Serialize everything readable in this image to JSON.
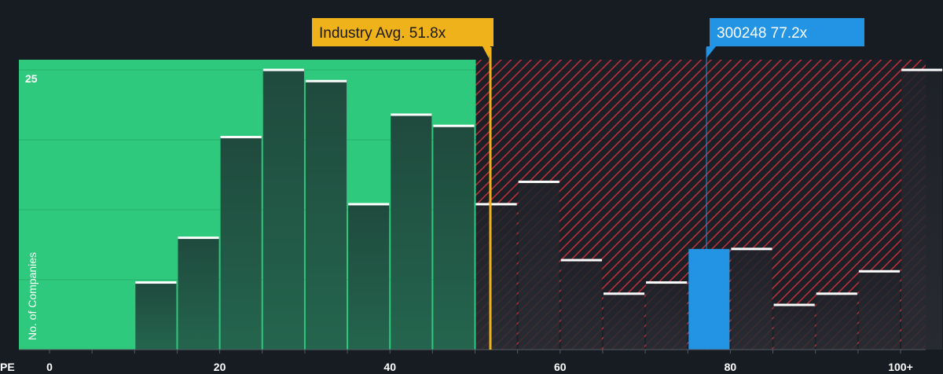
{
  "chart_data": {
    "type": "bar",
    "xlabel": "PE",
    "ylabel": "No. of Companies",
    "x_ticks": [
      "0",
      "20",
      "40",
      "60",
      "80",
      "100+"
    ],
    "y_ticks": [
      "25"
    ],
    "bin_width": 5,
    "bins": [
      {
        "start": 10,
        "end": 15,
        "value": 6
      },
      {
        "start": 15,
        "end": 20,
        "value": 10
      },
      {
        "start": 20,
        "end": 25,
        "value": 19
      },
      {
        "start": 25,
        "end": 30,
        "value": 25
      },
      {
        "start": 30,
        "end": 35,
        "value": 24
      },
      {
        "start": 35,
        "end": 40,
        "value": 13
      },
      {
        "start": 40,
        "end": 45,
        "value": 21
      },
      {
        "start": 45,
        "end": 50,
        "value": 20
      },
      {
        "start": 50,
        "end": 55,
        "value": 13
      },
      {
        "start": 55,
        "end": 60,
        "value": 15
      },
      {
        "start": 60,
        "end": 65,
        "value": 8
      },
      {
        "start": 65,
        "end": 70,
        "value": 5
      },
      {
        "start": 70,
        "end": 75,
        "value": 6
      },
      {
        "start": 75,
        "end": 80,
        "value": 9,
        "highlight": true
      },
      {
        "start": 80,
        "end": 85,
        "value": 9
      },
      {
        "start": 85,
        "end": 90,
        "value": 4
      },
      {
        "start": 90,
        "end": 95,
        "value": 5
      },
      {
        "start": 95,
        "end": 100,
        "value": 7
      },
      {
        "start": 100,
        "end": 105,
        "value": 25
      }
    ],
    "xlim": [
      0,
      105
    ],
    "ylim": [
      0,
      25
    ],
    "grid": true,
    "fair_zone_max": 50,
    "annotations": [
      {
        "label": "Industry Avg. 51.8x",
        "x": 51.8,
        "style": "industry"
      },
      {
        "label": "300248 77.2x",
        "x": 77.2,
        "style": "company"
      }
    ],
    "colors": {
      "background": "#171b22",
      "fair_zone": "#2ec97c",
      "bar": "#1e4a3c",
      "bar_top": "#ffffff",
      "hatch_bg": "#1d1f26",
      "hatch_line": "#c0303a",
      "industry": "#f0b21b",
      "company": "#2394e3"
    }
  }
}
